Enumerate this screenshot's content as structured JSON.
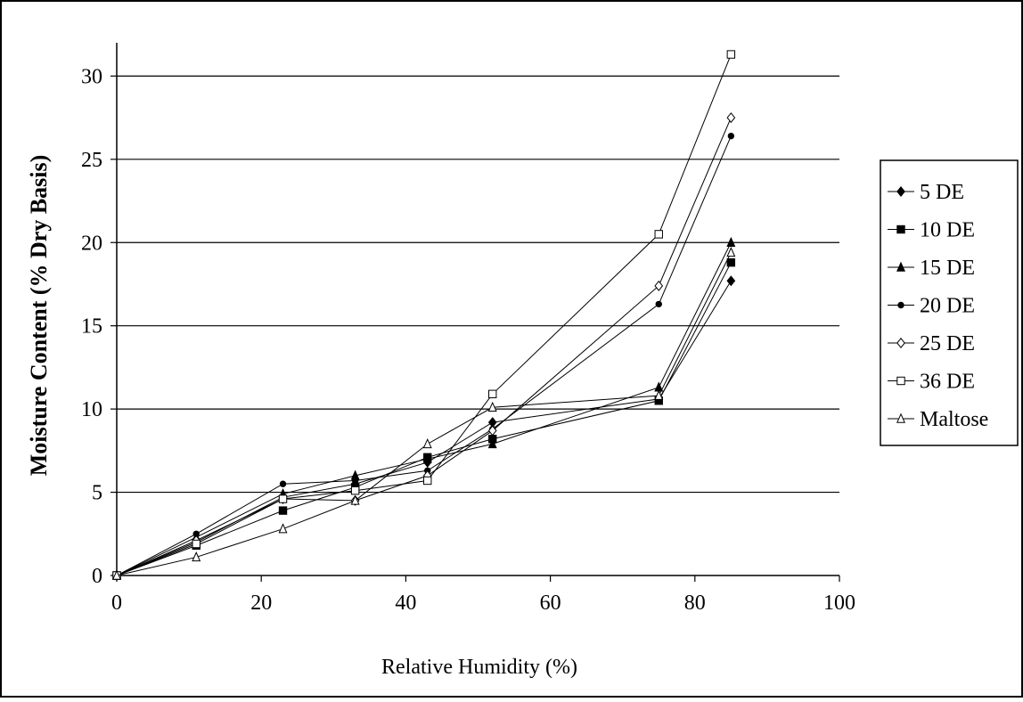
{
  "chart_data": {
    "type": "line",
    "title": "",
    "xlabel": "Relative Humidity (%)",
    "ylabel": "Moisture Content (% Dry Basis)",
    "xlim": [
      0,
      100
    ],
    "ylim": [
      0,
      32
    ],
    "xticks": [
      0,
      20,
      40,
      60,
      80,
      100
    ],
    "yticks": [
      0,
      5,
      10,
      15,
      20,
      25,
      30
    ],
    "grid": "horizontal",
    "legend_position": "right",
    "x": [
      0,
      11,
      23,
      33,
      43,
      52,
      75,
      85
    ],
    "series": [
      {
        "name": "5 DE",
        "marker": "diamond-filled",
        "values": [
          0,
          2.0,
          4.7,
          5.5,
          6.8,
          9.2,
          10.6,
          17.7
        ]
      },
      {
        "name": "10 DE",
        "marker": "square-filled",
        "values": [
          0,
          1.8,
          3.9,
          5.3,
          7.1,
          8.2,
          10.5,
          18.8
        ]
      },
      {
        "name": "15 DE",
        "marker": "triangle-filled",
        "values": [
          0,
          2.3,
          4.9,
          6.0,
          7.0,
          7.9,
          11.3,
          20.0
        ]
      },
      {
        "name": "20 DE",
        "marker": "dot-filled",
        "values": [
          0,
          2.5,
          5.5,
          5.7,
          6.3,
          8.8,
          16.3,
          26.4
        ]
      },
      {
        "name": "25 DE",
        "marker": "diamond-open",
        "values": [
          0,
          2.1,
          4.6,
          4.5,
          6.0,
          8.7,
          17.4,
          27.5
        ]
      },
      {
        "name": "36 DE",
        "marker": "square-open",
        "values": [
          0,
          1.9,
          4.6,
          5.1,
          5.7,
          10.9,
          20.5,
          31.3
        ]
      },
      {
        "name": "Maltose",
        "marker": "triangle-open",
        "values": [
          0,
          1.1,
          2.8,
          4.5,
          7.9,
          10.1,
          10.8,
          19.4
        ]
      }
    ]
  }
}
